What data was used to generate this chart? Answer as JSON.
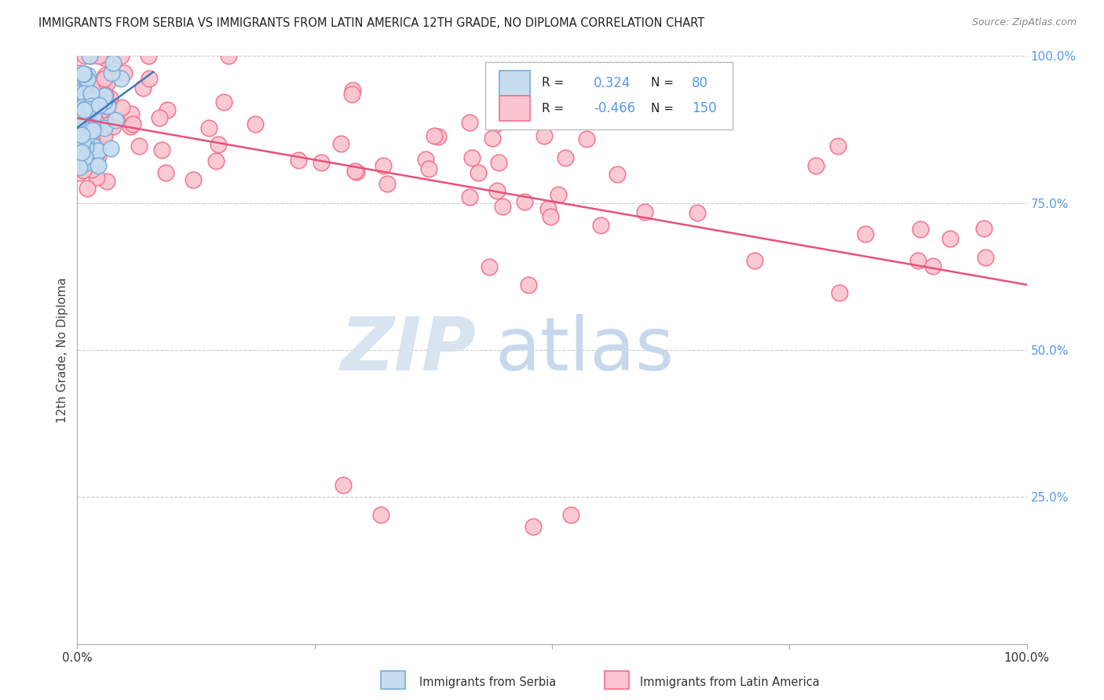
{
  "title": "IMMIGRANTS FROM SERBIA VS IMMIGRANTS FROM LATIN AMERICA 12TH GRADE, NO DIPLOMA CORRELATION CHART",
  "source": "Source: ZipAtlas.com",
  "ylabel": "12th Grade, No Diploma",
  "serbia_R": 0.324,
  "serbia_N": 80,
  "latin_R": -0.466,
  "latin_N": 150,
  "serbia_color": "#7AABDC",
  "serbia_fill": "#C5DDEF",
  "latin_color": "#F4708A",
  "latin_fill": "#FAC5D0",
  "serbia_line_color": "#4477BB",
  "latin_line_color": "#E8507A",
  "background_color": "#FFFFFF",
  "grid_color": "#CCCCCC",
  "right_axis_color": "#5599EE",
  "title_color": "#222222",
  "source_color": "#888888",
  "label_color": "#444444",
  "legend_border_color": "#BBBBBB",
  "legend_bg": "#FFFFFF"
}
